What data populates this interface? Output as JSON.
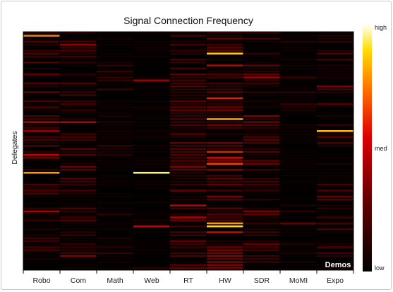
{
  "chart_data": {
    "type": "heatmap",
    "title": "Signal Connection Frequency",
    "ylabel": "Delegates",
    "categories": [
      "Robo",
      "Com",
      "Math",
      "Web",
      "RT",
      "HW",
      "SDR",
      "MoMI",
      "Expo"
    ],
    "colorbar": {
      "high": "high",
      "med": "med",
      "low": "low"
    },
    "annotation": "Demos",
    "rows": 80,
    "scale": [
      0,
      1
    ],
    "colors": {
      "low": "#000000",
      "mid": "#cc0000",
      "high_orange": "#ff8800",
      "top": "#ffff99"
    },
    "series": [
      {
        "name": "Robo",
        "seed": 11,
        "density": 0.55,
        "base": 0.18,
        "highlights": [
          [
            1,
            0.75
          ],
          [
            47,
            0.8
          ],
          [
            30,
            0.45
          ],
          [
            41,
            0.5
          ],
          [
            60,
            0.45
          ],
          [
            33,
            0.4
          ]
        ]
      },
      {
        "name": "Com",
        "seed": 23,
        "density": 0.5,
        "base": 0.16,
        "highlights": [
          [
            4,
            0.4
          ],
          [
            30,
            0.45
          ],
          [
            75,
            0.35
          ],
          [
            45,
            0.3
          ]
        ]
      },
      {
        "name": "Math",
        "seed": 37,
        "density": 0.25,
        "base": 0.1,
        "highlights": []
      },
      {
        "name": "Web",
        "seed": 41,
        "density": 0.1,
        "base": 0.08,
        "highlights": [
          [
            16,
            0.4
          ],
          [
            47,
            0.95
          ],
          [
            65,
            0.5
          ]
        ]
      },
      {
        "name": "RT",
        "seed": 53,
        "density": 0.7,
        "base": 0.18,
        "highlights": [
          [
            58,
            0.5
          ],
          [
            62,
            0.45
          ],
          [
            45,
            0.35
          ]
        ]
      },
      {
        "name": "HW",
        "seed": 67,
        "density": 0.75,
        "base": 0.22,
        "highlights": [
          [
            7,
            0.88
          ],
          [
            22,
            0.6
          ],
          [
            29,
            0.8
          ],
          [
            40,
            0.6
          ],
          [
            42,
            0.55
          ],
          [
            44,
            0.65
          ],
          [
            64,
            0.8
          ],
          [
            65,
            0.9
          ],
          [
            67,
            0.55
          ],
          [
            11,
            0.5
          ]
        ]
      },
      {
        "name": "SDR",
        "seed": 79,
        "density": 0.55,
        "base": 0.18,
        "highlights": [
          [
            15,
            0.4
          ],
          [
            28,
            0.35
          ],
          [
            60,
            0.35
          ]
        ]
      },
      {
        "name": "MoMI",
        "seed": 83,
        "density": 0.25,
        "base": 0.1,
        "highlights": [
          [
            64,
            0.3
          ]
        ]
      },
      {
        "name": "Expo",
        "seed": 97,
        "density": 0.45,
        "base": 0.16,
        "highlights": [
          [
            33,
            0.85
          ],
          [
            18,
            0.35
          ],
          [
            55,
            0.3
          ]
        ]
      }
    ]
  }
}
